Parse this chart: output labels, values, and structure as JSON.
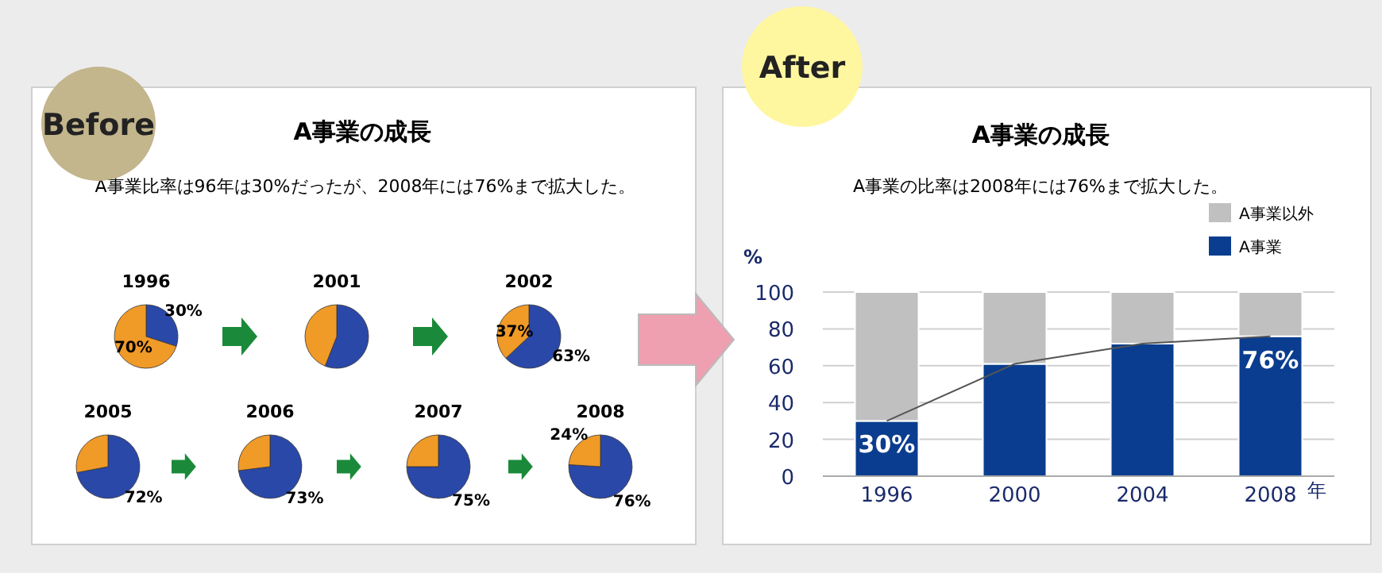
{
  "chart_data": [
    {
      "type": "other",
      "title": "A事業の成長",
      "subtitle": "A事業比率は96年は30%だったが、2008年には76%まで拡大した。",
      "annotations": [
        "Before"
      ]
    },
    {
      "type": "pie",
      "title": "1996",
      "categories": [
        null,
        null
      ],
      "values": [
        30,
        70
      ],
      "colors": [
        "#2a48a8",
        "#f09a28"
      ],
      "value_labels": [
        "30%",
        "70%"
      ]
    },
    {
      "type": "pie",
      "title": "2001",
      "categories": [
        null,
        null
      ],
      "values": [
        56,
        44
      ],
      "colors": [
        "#2a48a8",
        "#f09a28"
      ]
    },
    {
      "type": "pie",
      "title": "2002",
      "categories": [
        null,
        null
      ],
      "values": [
        63,
        37
      ],
      "colors": [
        "#2a48a8",
        "#f09a28"
      ],
      "value_labels": [
        "63%",
        "37%"
      ]
    },
    {
      "type": "pie",
      "title": "2005",
      "categories": [
        null,
        null
      ],
      "values": [
        72,
        28
      ],
      "colors": [
        "#2a48a8",
        "#f09a28"
      ],
      "value_labels": [
        "72%",
        null
      ]
    },
    {
      "type": "pie",
      "title": "2006",
      "categories": [
        null,
        null
      ],
      "values": [
        73,
        27
      ],
      "colors": [
        "#2a48a8",
        "#f09a28"
      ],
      "value_labels": [
        "73%",
        null
      ]
    },
    {
      "type": "pie",
      "title": "2007",
      "categories": [
        null,
        null
      ],
      "values": [
        75,
        25
      ],
      "colors": [
        "#2a48a8",
        "#f09a28"
      ],
      "value_labels": [
        "75%",
        null
      ]
    },
    {
      "type": "pie",
      "title": "2008",
      "categories": [
        null,
        null
      ],
      "values": [
        76,
        24
      ],
      "colors": [
        "#2a48a8",
        "#f09a28"
      ],
      "value_labels": [
        "76%",
        "24%"
      ]
    },
    {
      "type": "bar",
      "stacked": true,
      "title": "A事業の成長",
      "subtitle": "A事業の比率は2008年には76%まで拡大した。",
      "annotations": [
        "After"
      ],
      "ylabel": "%",
      "xlabel": "年",
      "categories": [
        "1996",
        "2000",
        "2004",
        "2008"
      ],
      "ylim": [
        0,
        100
      ],
      "yticks": [
        0,
        20,
        40,
        60,
        80,
        100
      ],
      "grid": "y",
      "legend": "top right",
      "series": [
        {
          "name": "A事業",
          "color": "#0a3d8f",
          "values": [
            30,
            61,
            72,
            76
          ],
          "value_labels": [
            "30%",
            null,
            null,
            "76%"
          ]
        },
        {
          "name": "A事業以外",
          "color": "#c0c0c0",
          "values": [
            70,
            39,
            28,
            24
          ]
        },
        {
          "type": "line",
          "color": "#555555",
          "values": [
            30,
            61,
            72,
            76
          ]
        }
      ]
    }
  ]
}
